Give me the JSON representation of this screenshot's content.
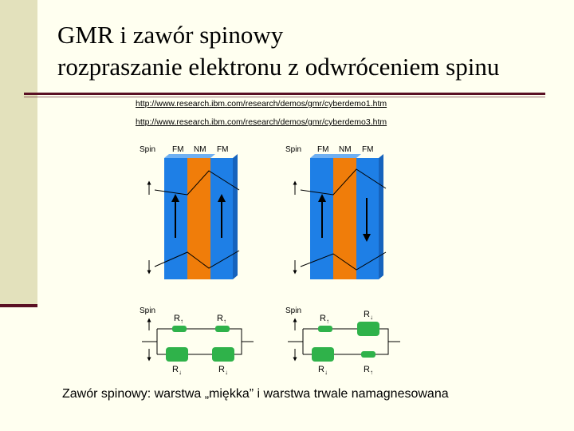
{
  "slide": {
    "title_line1": "GMR i zawór spinowy",
    "title_line2": "rozpraszanie elektronu z odwróceniem spinu",
    "links": [
      "http://www.research.ibm.com/research/demos/gmr/cyberdemo1.htm",
      "http://www.research.ibm.com/research/demos/gmr/cyberdemo3.htm"
    ],
    "caption": "Zawór spinowy: warstwa „miękka” i warstwa trwale namagnesowana"
  },
  "diagram": {
    "spin_label": "Spin",
    "layers": [
      "FM",
      "NM",
      "FM"
    ],
    "resistor_main": "R",
    "sub_up": "↑",
    "sub_down": "↓",
    "colors": {
      "fm": "#1e7fe6",
      "nm": "#f07d0a",
      "resistor": "#2fb24a",
      "frame": "#5a0f23"
    }
  }
}
